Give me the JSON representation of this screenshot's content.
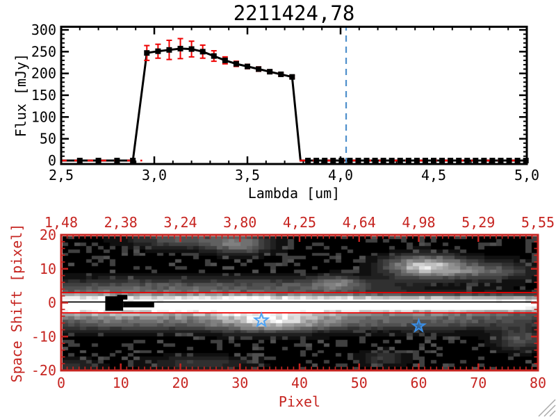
{
  "window_title": "2211424,78",
  "chart_data": [
    {
      "type": "line",
      "title": "2211424,78",
      "xlabel": "Lambda [um]",
      "ylabel": "Flux [mJy]",
      "xlim": [
        2.5,
        5.0
      ],
      "ylim": [
        0,
        312
      ],
      "grid": false,
      "xtick_labels": [
        "2,5",
        "3,0",
        "3,5",
        "4,0",
        "4,5",
        "5,0"
      ],
      "xtick_vals": [
        2.5,
        3.0,
        3.5,
        4.0,
        4.5,
        5.0
      ],
      "xminor_step": 0.1,
      "ytick_labels": [
        "0",
        "50",
        "100",
        "150",
        "200",
        "250",
        "300"
      ],
      "ytick_vals": [
        0,
        50,
        100,
        150,
        200,
        250,
        300
      ],
      "yminor_step": 10,
      "series": [
        {
          "name": "spectrum",
          "color": "#000000",
          "marker": "square",
          "err_color": "#ee0000",
          "x": [
            2.6,
            2.7,
            2.8,
            2.885,
            2.96,
            3.02,
            3.08,
            3.14,
            3.2,
            3.26,
            3.32,
            3.38,
            3.44,
            3.5,
            3.56,
            3.62,
            3.68,
            3.74,
            3.825,
            3.87,
            3.915,
            3.96,
            4.005,
            4.05,
            4.095,
            4.14,
            4.185,
            4.23,
            4.275,
            4.32,
            4.365,
            4.41,
            4.455,
            4.5,
            4.545,
            4.59,
            4.635,
            4.68,
            4.725,
            4.77,
            4.815,
            4.86,
            4.905,
            4.95,
            4.995
          ],
          "y": [
            0,
            0,
            0,
            0,
            247,
            251,
            254,
            257,
            256,
            250,
            240,
            230,
            222,
            216,
            210,
            204,
            198,
            192,
            0,
            0,
            0,
            0,
            0,
            0,
            0,
            0,
            0,
            0,
            0,
            0,
            0,
            0,
            0,
            0,
            0,
            0,
            0,
            0,
            0,
            0,
            0,
            0,
            0,
            0,
            0
          ],
          "yerr": [
            0,
            0,
            0,
            0,
            17,
            16,
            22,
            23,
            18,
            15,
            12,
            8,
            6,
            5,
            5,
            4,
            4,
            3,
            0,
            0,
            0,
            0,
            0,
            0,
            0,
            0,
            0,
            0,
            0,
            0,
            0,
            0,
            0,
            0,
            0,
            0,
            0,
            0,
            0,
            0,
            0,
            0,
            0,
            0,
            0
          ],
          "line_start_x": 2.5,
          "drop_to_zero_x": 3.785,
          "line_end_x": 5.0
        }
      ],
      "baseline": {
        "y": 0,
        "color": "#ee0000",
        "style": "dashed",
        "segments": [
          [
            2.5,
            2.935
          ],
          [
            3.78,
            5.0
          ]
        ]
      },
      "vline": {
        "x": 4.03,
        "color": "#4e8fcb",
        "style": "dashed"
      }
    },
    {
      "type": "heatmap",
      "xlabel": "Pixel",
      "ylabel": "Space Shift [pixel]",
      "axis_color": "#c62420",
      "xlim": [
        0,
        80
      ],
      "ylim": [
        -20,
        20
      ],
      "xtick_labels": [
        "0",
        "10",
        "20",
        "30",
        "40",
        "50",
        "60",
        "70",
        "80"
      ],
      "xtick_vals": [
        0,
        10,
        20,
        30,
        40,
        50,
        60,
        70,
        80
      ],
      "ytick_labels": [
        "20",
        "10",
        "0",
        "-10",
        "-20"
      ],
      "ytick_vals": [
        20,
        10,
        0,
        -10,
        -20
      ],
      "top_axis_labels": [
        "1,48",
        "2,38",
        "3,24",
        "3,80",
        "4,25",
        "4,64",
        "4,98",
        "5,29",
        "5,55"
      ],
      "colormap": "grayscale",
      "overlays": {
        "h_lines": [
          {
            "y": 3.0,
            "color": "#ee0000",
            "name": "aperture-upper-line"
          },
          {
            "y": -3.0,
            "color": "#ee0000",
            "name": "aperture-lower-line"
          },
          {
            "y": 0.2,
            "color": "#000000",
            "name": "trace-center-line"
          }
        ],
        "stars": [
          {
            "x": 33.6,
            "y": -5.2,
            "color": "#4da3f5",
            "filled": false
          },
          {
            "x": 60.0,
            "y": -6.9,
            "color": "#3a8fe8",
            "filled": true
          }
        ],
        "masked_black_regions": [
          {
            "x0": 7.4,
            "x1": 10.4,
            "s0": -2.4,
            "s1": 1.9
          },
          {
            "x0": 9.4,
            "x1": 11.1,
            "s0": 0.9,
            "s1": 2.3
          },
          {
            "x0": 10.4,
            "x1": 15.6,
            "s0": -1.4,
            "s1": 0.3
          }
        ]
      },
      "features": [
        {
          "a": 250,
          "x": 25,
          "sx": 18,
          "s": -0.4,
          "ss": 1.9
        },
        {
          "a": 210,
          "x": 55,
          "sx": 25,
          "s": -0.4,
          "ss": 1.7
        },
        {
          "a": 160,
          "x": 78,
          "sx": 18,
          "s": -0.4,
          "ss": 1.6
        },
        {
          "a": 200,
          "x": 2,
          "sx": 6,
          "s": -0.4,
          "ss": 2.0
        },
        {
          "a": 105,
          "x": 10,
          "sx": 14,
          "s": -4.8,
          "ss": 2.4
        },
        {
          "a": 150,
          "x": 35,
          "sx": 6.5,
          "s": -5.2,
          "ss": 2.4
        },
        {
          "a": 95,
          "x": 58,
          "sx": 20,
          "s": -5.2,
          "ss": 2.0
        },
        {
          "a": 88,
          "x": 16,
          "sx": 18,
          "s": 4.6,
          "ss": 2.0
        },
        {
          "a": 55,
          "x": 45,
          "sx": 10,
          "s": 5.5,
          "ss": 1.6
        },
        {
          "a": 190,
          "x": 61,
          "sx": 4.5,
          "s": 11.0,
          "ss": 2.2
        },
        {
          "a": 95,
          "x": 71,
          "sx": 6,
          "s": 9.5,
          "ss": 2.0
        },
        {
          "a": 85,
          "x": 20,
          "sx": 6,
          "s": 19.0,
          "ss": 1.8
        },
        {
          "a": 115,
          "x": 30,
          "sx": 3.5,
          "s": 17.5,
          "ss": 2.0
        },
        {
          "a": 70,
          "x": 46,
          "sx": 2.5,
          "s": 6.0,
          "ss": 1.5
        },
        {
          "a": 85,
          "x": 77,
          "sx": 2.8,
          "s": -11.0,
          "ss": 2.2
        },
        {
          "a": 55,
          "x": 23,
          "sx": 6,
          "s": -18.0,
          "ss": 1.5
        },
        {
          "a": 60,
          "x": 54,
          "sx": 2.5,
          "s": -16.5,
          "ss": 1.5
        },
        {
          "a": 50,
          "x": 2,
          "sx": 3,
          "s": -19.0,
          "ss": 1.5
        }
      ]
    }
  ]
}
